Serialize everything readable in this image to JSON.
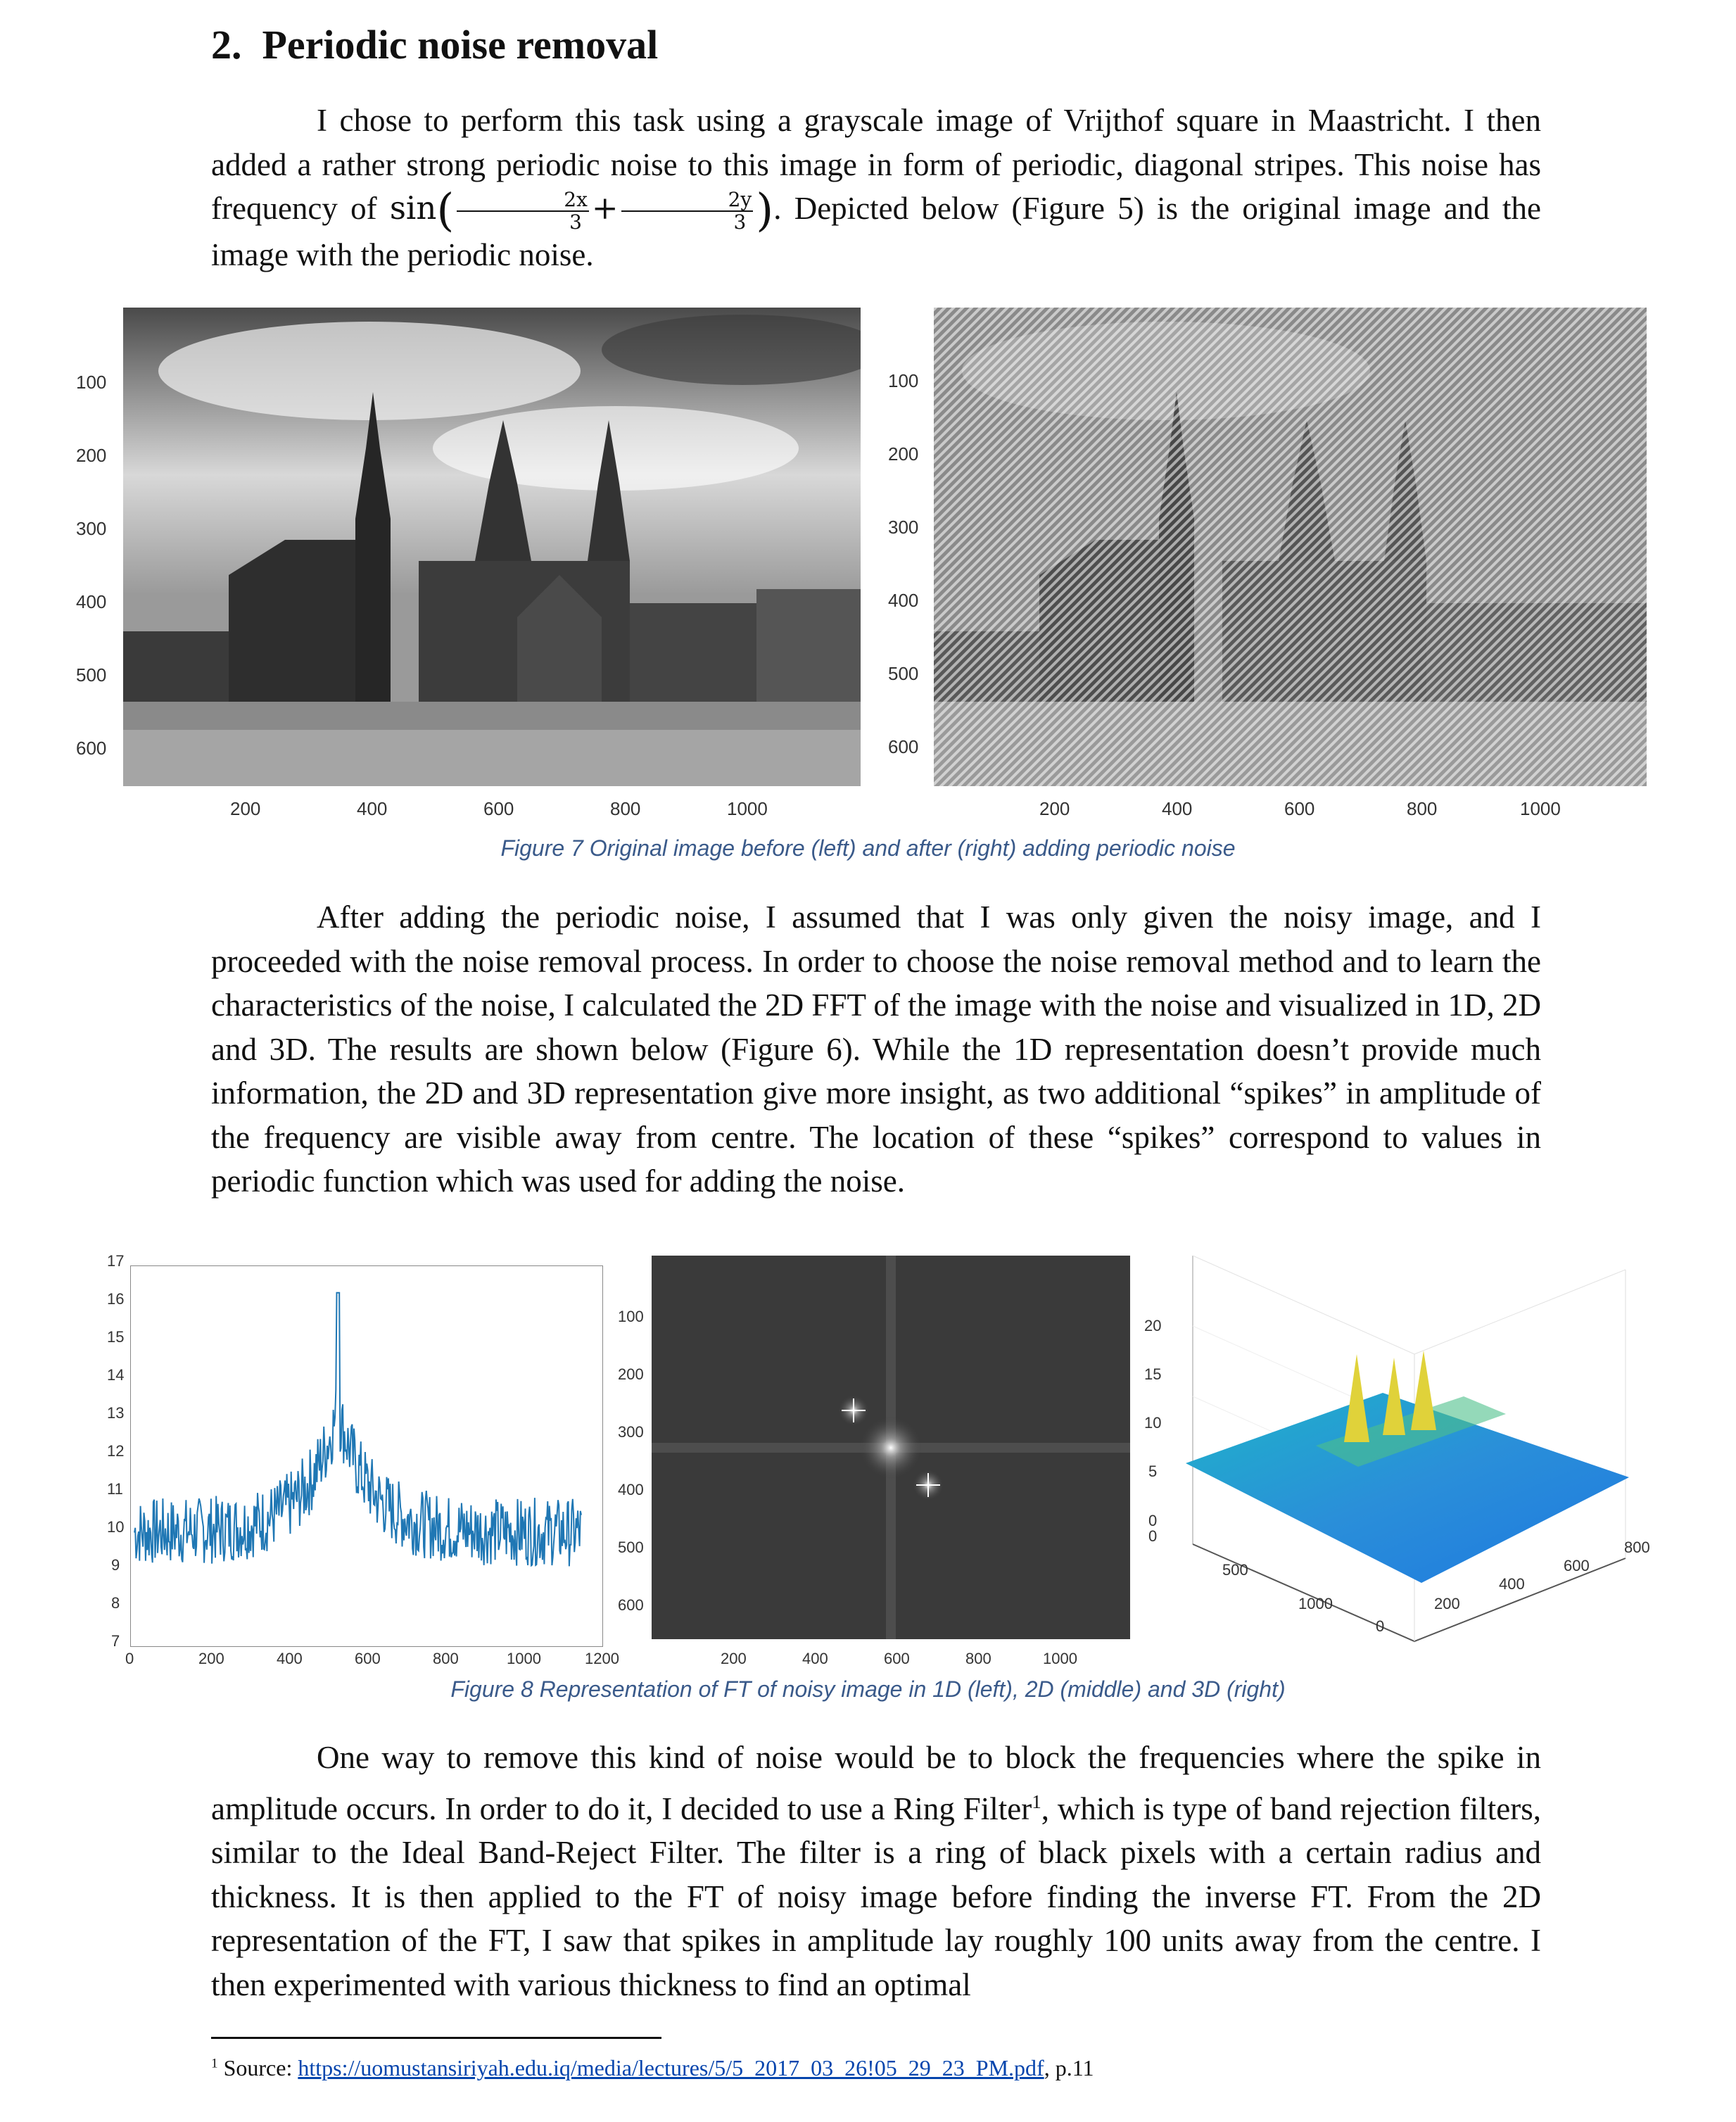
{
  "section": {
    "number": "2.",
    "title": "Periodic noise removal"
  },
  "paragraph1": {
    "before_formula": "I chose to perform this task using a grayscale image of Vrijthof square in Maastricht. I then added a rather strong periodic noise to this image in form of periodic, diagonal stripes. This noise has frequency of ",
    "formula": {
      "fn": "sin",
      "term1_num": "2x",
      "term1_den": "3",
      "op": "+",
      "term2_num": "2y",
      "term2_den": "3"
    },
    "after_formula": ". Depicted below (Figure 5) is the original image and the image with the periodic noise."
  },
  "figure7": {
    "caption": "Figure 7 Original image before (left) and after (right) adding periodic noise",
    "y_ticks": [
      "100",
      "200",
      "300",
      "400",
      "500",
      "600"
    ],
    "x_ticks": [
      "200",
      "400",
      "600",
      "800",
      "1000"
    ]
  },
  "paragraph2": "After adding the periodic noise, I assumed that I was only given the noisy image, and I proceeded with the noise removal process. In order to choose the noise removal method and to learn the characteristics of the noise, I calculated the 2D FFT of the image with the noise and visualized in 1D, 2D and 3D. The results are shown below (Figure 6). While the 1D representation doesn’t provide much information, the 2D and 3D representation give more insight, as two additional “spikes” in amplitude of the frequency are visible away from centre. The location of these “spikes” correspond to values in periodic function which was used for adding the noise.",
  "figure8": {
    "caption": "Figure 8 Representation of FT of noisy image in 1D (left), 2D (middle) and 3D (right)",
    "plot1d": {
      "y_ticks": [
        "7",
        "8",
        "9",
        "10",
        "11",
        "12",
        "13",
        "14",
        "15",
        "16",
        "17"
      ],
      "x_ticks": [
        "0",
        "200",
        "400",
        "600",
        "800",
        "1000",
        "1200"
      ],
      "line_color": "#1f77b4"
    },
    "plot2d": {
      "y_ticks": [
        "100",
        "200",
        "300",
        "400",
        "500",
        "600"
      ],
      "x_ticks": [
        "200",
        "400",
        "600",
        "800",
        "1000"
      ]
    },
    "plot3d": {
      "z_ticks": [
        "0",
        "5",
        "10",
        "15",
        "20"
      ],
      "x_ticks": [
        "0",
        "500",
        "1000"
      ],
      "y_ticks": [
        "0",
        "200",
        "400",
        "600",
        "800"
      ]
    }
  },
  "paragraph3": {
    "before_sup": "One way to remove this kind of noise would be to block the frequencies where the spike in amplitude occurs. In order to do it, I decided to use a Ring Filter",
    "sup": "1",
    "after_sup": ", which is type of band rejection filters, similar to the Ideal Band-Reject Filter. The filter is a ring of black pixels with a certain radius and thickness. It is then applied to the FT of noisy image before finding the inverse FT. From the 2D representation of the FT, I saw that spikes in amplitude lay roughly 100 units away from the centre. I then experimented with various thickness to find an optimal"
  },
  "footnote": {
    "marker": "1",
    "label": "Source: ",
    "link": "https://uomustansiriyah.edu.iq/media/lectures/5/5_2017_03_26!05_29_23_PM.pdf",
    "suffix": ", p.11"
  }
}
